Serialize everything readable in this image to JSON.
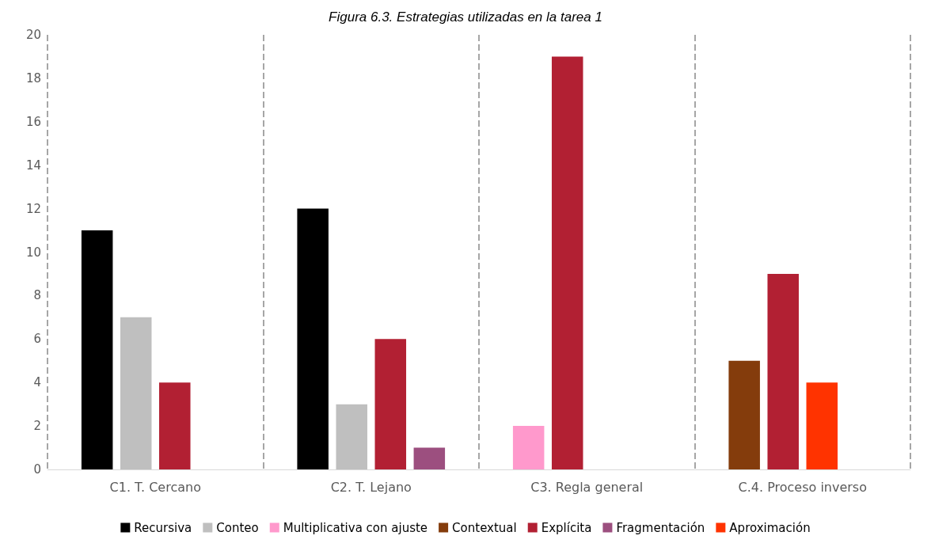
{
  "chart_data": {
    "type": "bar",
    "title": "Figura 6.3. Estrategias utilizadas en la tarea 1",
    "categories": [
      "C1. T. Cercano",
      "C2. T. Lejano",
      "C3. Regla general",
      "C.4. Proceso inverso"
    ],
    "series": [
      {
        "name": "Recursiva",
        "color": "#000000",
        "values": [
          11,
          12,
          null,
          null
        ]
      },
      {
        "name": "Conteo",
        "color": "#bfbfbf",
        "values": [
          7,
          3,
          null,
          null
        ]
      },
      {
        "name": "Multiplicativa con ajuste",
        "color": "#ff99cc",
        "values": [
          null,
          null,
          2,
          null
        ]
      },
      {
        "name": "Contextual",
        "color": "#843c0c",
        "values": [
          null,
          null,
          null,
          5
        ]
      },
      {
        "name": "Explícita",
        "color": "#b22033",
        "values": [
          4,
          6,
          19,
          9
        ]
      },
      {
        "name": "Fragmentación",
        "color": "#9c4f7f",
        "values": [
          null,
          1,
          null,
          null
        ]
      },
      {
        "name": "Aproximación",
        "color": "#ff3300",
        "values": [
          null,
          null,
          null,
          4
        ]
      }
    ],
    "ylim": [
      0,
      20
    ],
    "yticks": [
      0,
      2,
      4,
      6,
      8,
      10,
      12,
      14,
      16,
      18,
      20
    ],
    "grid": "x",
    "legend": "bottom"
  }
}
